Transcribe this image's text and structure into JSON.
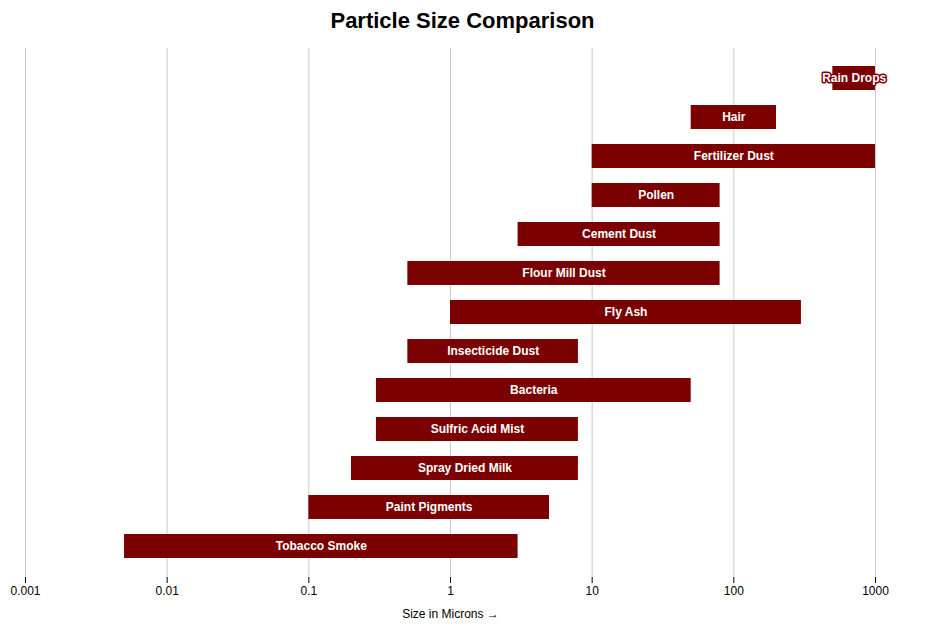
{
  "chart_data": {
    "type": "bar",
    "orientation": "horizontal",
    "log": "x",
    "title": "Particle Size Comparison",
    "xlabel": "Size in Microns",
    "categories": [
      "Rain Drops",
      "Hair",
      "Fertilizer Dust",
      "Pollen",
      "Cement Dust",
      "Flour Mill Dust",
      "Fly Ash",
      "Insecticide Dust",
      "Bacteria",
      "Sulfric Acid Mist",
      "Spray Dried Milk",
      "Paint Pigments",
      "Tobacco Smoke"
    ],
    "values": [
      [
        500,
        1000
      ],
      [
        50,
        200
      ],
      [
        10,
        1000
      ],
      [
        10,
        80
      ],
      [
        3,
        80
      ],
      [
        0.5,
        80
      ],
      [
        1,
        300
      ],
      [
        0.5,
        8
      ],
      [
        0.3,
        50
      ],
      [
        0.3,
        8
      ],
      [
        0.2,
        8
      ],
      [
        0.1,
        5
      ],
      [
        0.005,
        3
      ]
    ],
    "color": "#7B0000",
    "xlim": [
      0.001,
      1000
    ],
    "xticks": [
      0.001,
      0.01,
      0.1,
      1,
      10,
      100,
      1000
    ],
    "grid": true,
    "tick_labels": "x"
  }
}
